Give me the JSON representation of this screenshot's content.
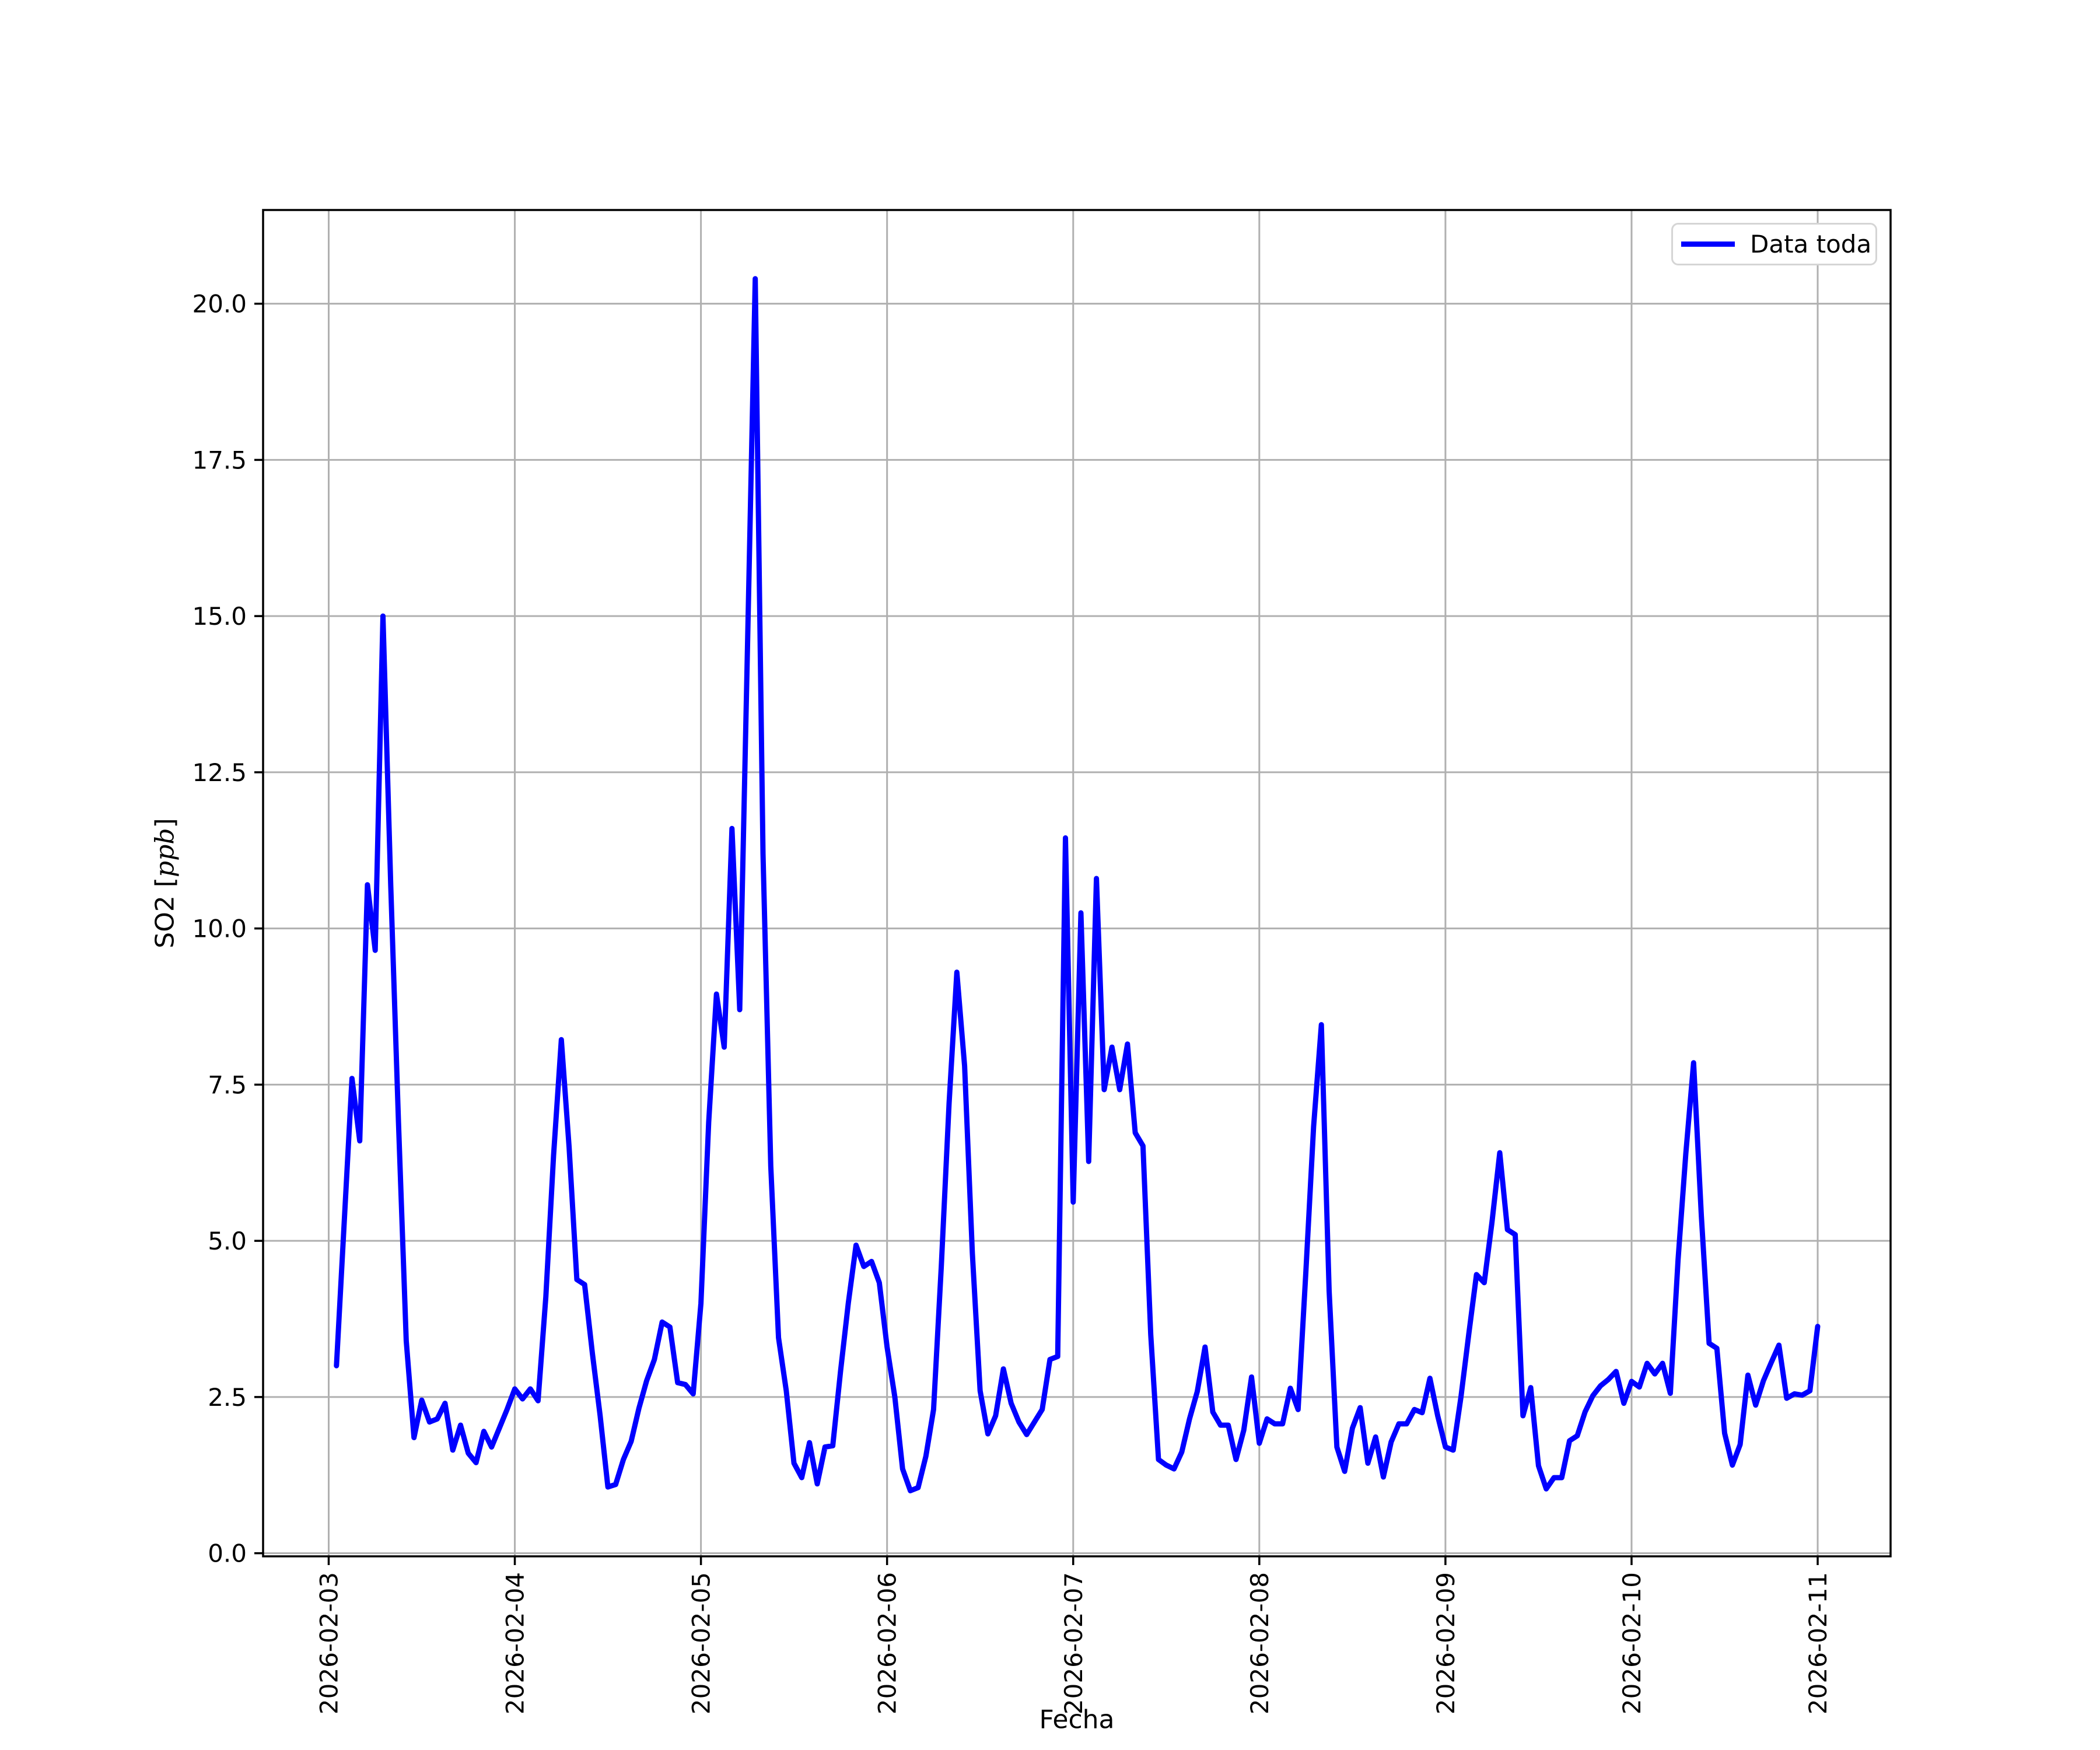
{
  "chart_data": {
    "type": "line",
    "title": "",
    "xlabel": "Fecha",
    "ylabel": {
      "prefix": "SO2 [",
      "italic": "ppb",
      "suffix": "]"
    },
    "legend": {
      "position": "upper right",
      "entries": [
        {
          "label": "Data toda",
          "color": "#0000ff"
        }
      ]
    },
    "grid": true,
    "colors": {
      "line": "#0000ff",
      "grid": "#b0b0b0",
      "spine": "#000000",
      "background": "#ffffff",
      "legend_border": "#d5d5d5"
    },
    "x_tick_labels": [
      "2026-02-03",
      "2026-02-04",
      "2026-02-05",
      "2026-02-06",
      "2026-02-07",
      "2026-02-08",
      "2026-02-09",
      "2026-02-10",
      "2026-02-11"
    ],
    "x_tick_hours": [
      0,
      24,
      48,
      72,
      96,
      120,
      144,
      168,
      192
    ],
    "y_tick_labels": [
      "0.0",
      "2.5",
      "5.0",
      "7.5",
      "10.0",
      "12.5",
      "15.0",
      "17.5",
      "20.0"
    ],
    "y_tick_values": [
      0,
      2.5,
      5,
      7.5,
      10,
      12.5,
      15,
      17.5,
      20
    ],
    "xlim_hours": [
      -8.46,
      201.4
    ],
    "ylim": [
      -0.05,
      21.5
    ],
    "series": [
      {
        "name": "Data toda",
        "start": "2026-02-03 01:00",
        "interval_hours": 1,
        "first_hour_offset": 1,
        "values": [
          3.0,
          5.3,
          7.6,
          6.6,
          10.7,
          9.65,
          15.0,
          10.7,
          6.9,
          3.4,
          1.85,
          2.45,
          2.1,
          2.15,
          2.4,
          1.65,
          2.05,
          1.6,
          1.45,
          1.95,
          1.7,
          2.0,
          2.3,
          2.63,
          2.47,
          2.63,
          2.44,
          4.1,
          6.37,
          8.22,
          6.5,
          4.38,
          4.3,
          3.2,
          2.2,
          1.06,
          1.1,
          1.5,
          1.79,
          2.32,
          2.76,
          3.1,
          3.7,
          3.62,
          2.73,
          2.7,
          2.55,
          4.0,
          6.9,
          8.95,
          8.1,
          11.6,
          8.7,
          14.5,
          20.4,
          11.2,
          6.2,
          3.45,
          2.6,
          1.44,
          1.21,
          1.77,
          1.11,
          1.7,
          1.72,
          2.91,
          4.0,
          4.93,
          4.59,
          4.67,
          4.33,
          3.3,
          2.5,
          1.35,
          1.0,
          1.05,
          1.55,
          2.3,
          4.6,
          7.2,
          9.3,
          7.8,
          4.8,
          2.6,
          1.91,
          2.2,
          2.95,
          2.4,
          2.1,
          1.9,
          2.1,
          2.3,
          3.1,
          3.15,
          11.45,
          5.62,
          10.25,
          6.27,
          10.8,
          7.42,
          8.1,
          7.42,
          8.15,
          6.73,
          6.52,
          3.5,
          1.5,
          1.41,
          1.35,
          1.62,
          2.15,
          2.59,
          3.3,
          2.26,
          2.05,
          2.05,
          1.5,
          1.97,
          2.82,
          1.76,
          2.15,
          2.07,
          2.07,
          2.64,
          2.3,
          4.5,
          6.83,
          8.46,
          4.2,
          1.7,
          1.31,
          2.0,
          2.33,
          1.44,
          1.86,
          1.22,
          1.78,
          2.07,
          2.07,
          2.3,
          2.25,
          2.8,
          2.2,
          1.7,
          1.65,
          2.5,
          3.5,
          4.46,
          4.33,
          5.3,
          6.41,
          5.18,
          5.1,
          2.2,
          2.65,
          1.4,
          1.03,
          1.21,
          1.21,
          1.8,
          1.88,
          2.26,
          2.52,
          2.68,
          2.78,
          2.91,
          2.4,
          2.75,
          2.66,
          3.04,
          2.87,
          3.04,
          2.56,
          4.7,
          6.4,
          7.85,
          5.4,
          3.36,
          3.28,
          1.92,
          1.41,
          1.74,
          2.85,
          2.37,
          2.76,
          3.05,
          3.33,
          2.48,
          2.55,
          2.53,
          2.6,
          3.63
        ]
      }
    ]
  }
}
